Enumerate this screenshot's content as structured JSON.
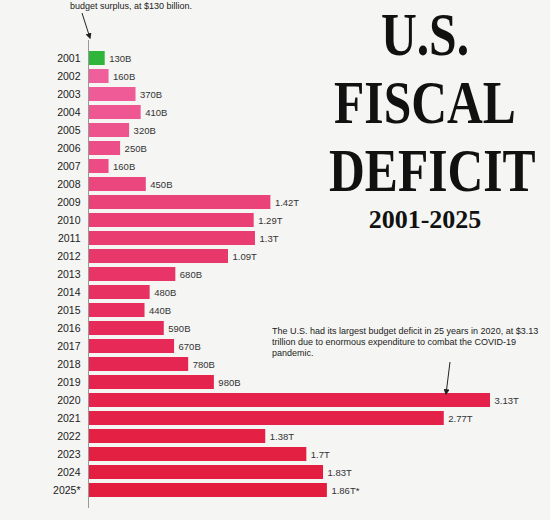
{
  "chart_data": {
    "type": "bar",
    "orientation": "horizontal",
    "title": "U.S. FISCAL DEFICIT",
    "subtitle": "2001-2025",
    "annotations": [
      "budget surplus, at $130 billion.",
      "The U.S. had its largest budget deficit in 25 years in 2020, at $3.13 trillion due to enormous expenditure to combat the COVID-19 pandemic."
    ],
    "categories": [
      "2001",
      "2002",
      "2003",
      "2004",
      "2005",
      "2006",
      "2007",
      "2008",
      "2009",
      "2010",
      "2011",
      "2012",
      "2013",
      "2014",
      "2015",
      "2016",
      "2017",
      "2018",
      "2019",
      "2020",
      "2021",
      "2022",
      "2023",
      "2024",
      "2025*"
    ],
    "values": [
      130,
      160,
      370,
      410,
      320,
      250,
      160,
      450,
      1420,
      1290,
      1300,
      1090,
      680,
      480,
      440,
      590,
      670,
      780,
      980,
      3130,
      2770,
      1380,
      1700,
      1830,
      1860
    ],
    "value_labels": [
      "130B",
      "160B",
      "370B",
      "410B",
      "320B",
      "250B",
      "160B",
      "450B",
      "1.42T",
      "1.29T",
      "1.3T",
      "1.09T",
      "680B",
      "480B",
      "440B",
      "590B",
      "670B",
      "780B",
      "980B",
      "3.13T",
      "2.77T",
      "1.38T",
      "1.7T",
      "1.83T",
      "1.86T*"
    ],
    "colors": [
      "#2fb53a",
      "#ef5f9c",
      "#ee5b97",
      "#ee5792",
      "#ed538d",
      "#ec4f88",
      "#ec4b83",
      "#eb477e",
      "#ea4379",
      "#ea3f74",
      "#e93c70",
      "#e8386b",
      "#e83467",
      "#e73162",
      "#e72e5e",
      "#e62b5a",
      "#e62956",
      "#e52652",
      "#e5244e",
      "#e4224b",
      "#e42148",
      "#e42045",
      "#e31f42",
      "#e31e40",
      "#e31d3e"
    ],
    "xlim": [
      0,
      3130
    ],
    "data_labels": true,
    "tick_labels": "y",
    "grid": false
  }
}
